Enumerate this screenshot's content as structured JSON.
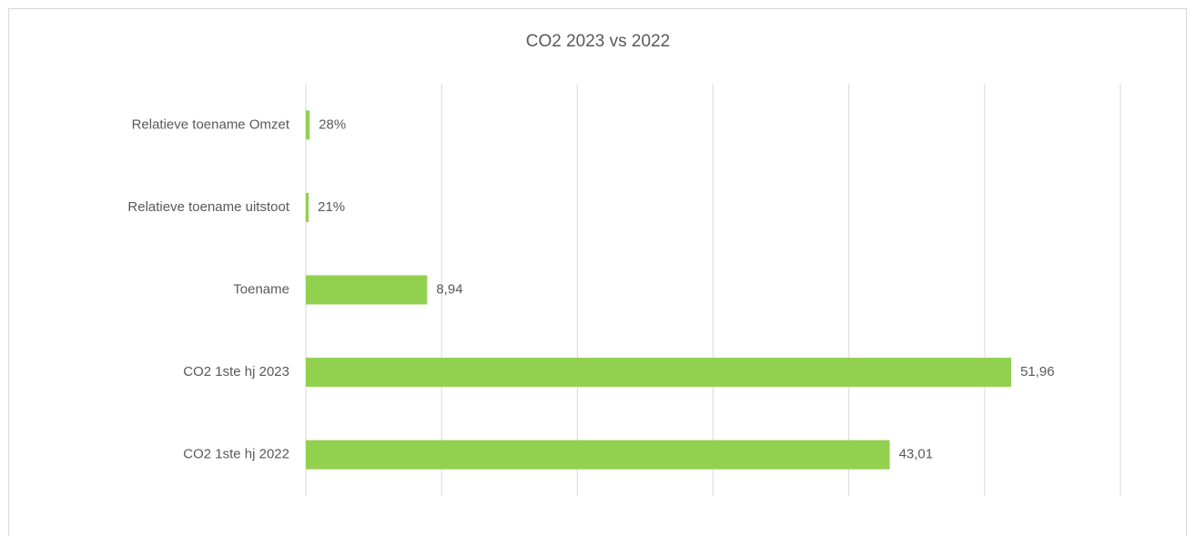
{
  "chart_data": {
    "type": "hbar",
    "title": "CO2  2023 vs 2022",
    "categories": [
      "Relatieve toename Omzet",
      "Relatieve toename uitstoot",
      "Toename",
      "CO2 1ste hj 2023",
      "CO2 1ste hj 2022"
    ],
    "values": [
      0.28,
      0.21,
      8.94,
      51.96,
      43.01
    ],
    "value_labels": [
      "28%",
      "21%",
      "8,94",
      "51,96",
      "43,01"
    ],
    "color": "#92d050",
    "xlim": [
      0,
      60
    ],
    "xticks": [
      0,
      10,
      20,
      30,
      40,
      50,
      60
    ],
    "grid": true
  }
}
